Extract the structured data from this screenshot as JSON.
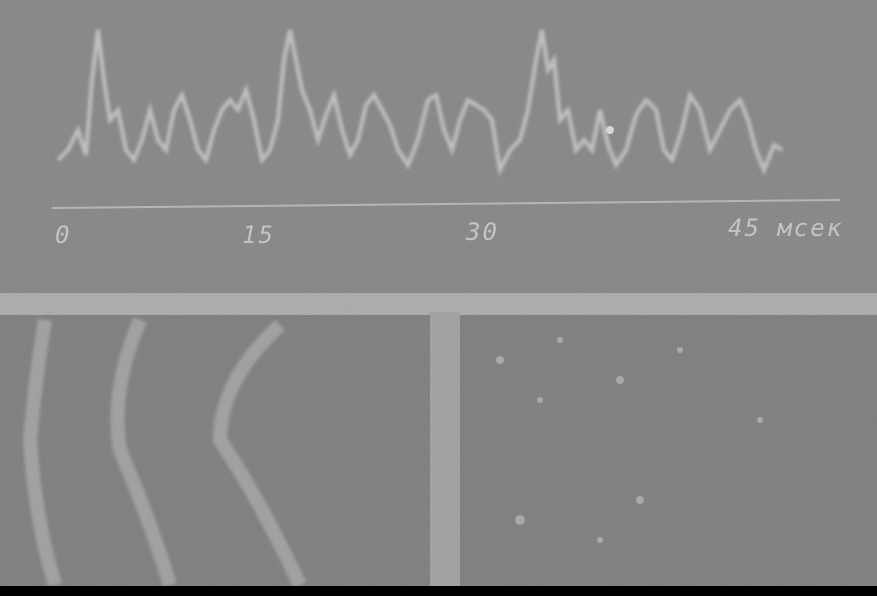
{
  "scale": {
    "ticks": [
      "0",
      "15",
      "30",
      "45 мсек"
    ]
  }
}
